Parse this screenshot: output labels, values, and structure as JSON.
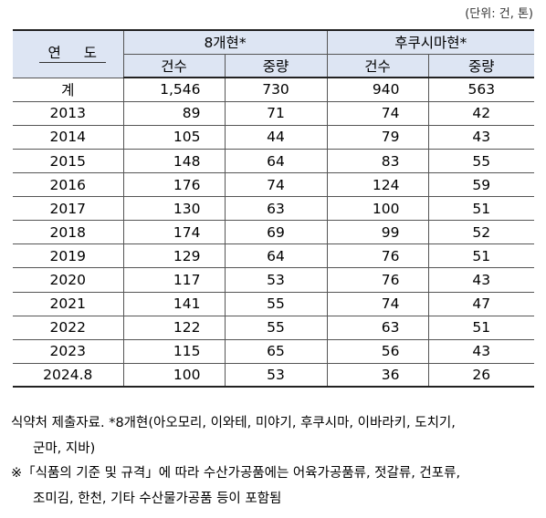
{
  "unit_note": "(단위: 건, 톤)",
  "table": {
    "year_header": "연 도",
    "group_headers": [
      "8개현*",
      "후쿠시마현*"
    ],
    "sub_headers": [
      "건수",
      "중량",
      "건수",
      "중량"
    ],
    "rows": [
      {
        "year": "계",
        "a_count": "1,546",
        "a_weight": "730",
        "b_count": "940",
        "b_weight": "563"
      },
      {
        "year": "2013",
        "a_count": "89",
        "a_weight": "71",
        "b_count": "74",
        "b_weight": "42"
      },
      {
        "year": "2014",
        "a_count": "105",
        "a_weight": "44",
        "b_count": "79",
        "b_weight": "43"
      },
      {
        "year": "2015",
        "a_count": "148",
        "a_weight": "64",
        "b_count": "83",
        "b_weight": "55"
      },
      {
        "year": "2016",
        "a_count": "176",
        "a_weight": "74",
        "b_count": "124",
        "b_weight": "59"
      },
      {
        "year": "2017",
        "a_count": "130",
        "a_weight": "63",
        "b_count": "100",
        "b_weight": "51"
      },
      {
        "year": "2018",
        "a_count": "174",
        "a_weight": "69",
        "b_count": "99",
        "b_weight": "52"
      },
      {
        "year": "2019",
        "a_count": "129",
        "a_weight": "64",
        "b_count": "76",
        "b_weight": "51"
      },
      {
        "year": "2020",
        "a_count": "117",
        "a_weight": "53",
        "b_count": "76",
        "b_weight": "43"
      },
      {
        "year": "2021",
        "a_count": "141",
        "a_weight": "55",
        "b_count": "74",
        "b_weight": "47"
      },
      {
        "year": "2022",
        "a_count": "122",
        "a_weight": "55",
        "b_count": "63",
        "b_weight": "51"
      },
      {
        "year": "2023",
        "a_count": "115",
        "a_weight": "65",
        "b_count": "56",
        "b_weight": "43"
      },
      {
        "year": "2024.8",
        "a_count": "100",
        "a_weight": "53",
        "b_count": "36",
        "b_weight": "26"
      }
    ]
  },
  "notes": {
    "source_line1": "식약처 제출자료. *8개현(아오모리, 이와테, 미야기, 후쿠시마, 이바라키, 도치기,",
    "source_line2": "군마, 지바)",
    "remark_line1": "※「식품의 기준 및 규격」에 따라 수산가공품에는 어육가공품류, 젓갈류, 건포류,",
    "remark_line2": "조미김, 한천, 기타 수산물가공품 등이 포함됨"
  },
  "colors": {
    "header_background": "#dde5f3",
    "border": "#555555"
  }
}
